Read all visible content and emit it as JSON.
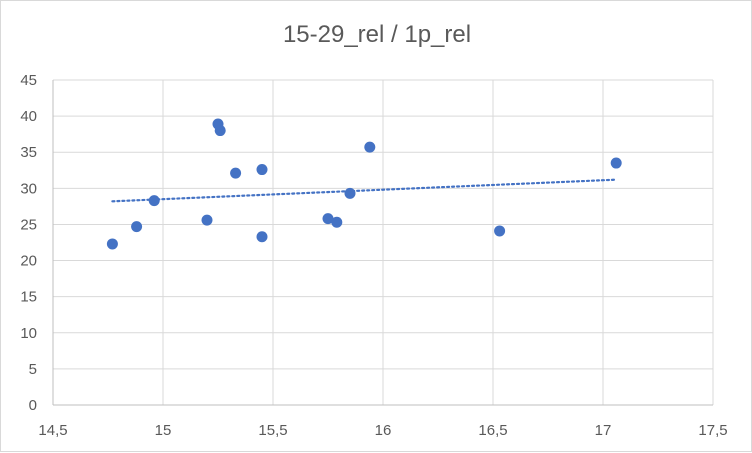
{
  "chart_data": {
    "type": "scatter",
    "title": "15-29_rel / 1p_rel",
    "xlabel": "",
    "ylabel": "",
    "xlim": [
      14.5,
      17.5
    ],
    "ylim": [
      0,
      45
    ],
    "x_ticks": [
      14.5,
      15,
      15.5,
      16,
      16.5,
      17,
      17.5
    ],
    "x_tick_labels": [
      "14,5",
      "15",
      "15,5",
      "16",
      "16,5",
      "17",
      "17,5"
    ],
    "y_ticks": [
      0,
      5,
      10,
      15,
      20,
      25,
      30,
      35,
      40,
      45
    ],
    "y_tick_labels": [
      "0",
      "5",
      "10",
      "15",
      "20",
      "25",
      "30",
      "35",
      "40",
      "45"
    ],
    "grid": true,
    "legend": "none",
    "series": [
      {
        "points": [
          {
            "x": 14.77,
            "y": 22.3
          },
          {
            "x": 14.88,
            "y": 24.7
          },
          {
            "x": 14.96,
            "y": 28.3
          },
          {
            "x": 15.2,
            "y": 25.6
          },
          {
            "x": 15.25,
            "y": 38.9
          },
          {
            "x": 15.26,
            "y": 38.0
          },
          {
            "x": 15.33,
            "y": 32.1
          },
          {
            "x": 15.45,
            "y": 32.6
          },
          {
            "x": 15.45,
            "y": 23.3
          },
          {
            "x": 15.75,
            "y": 25.8
          },
          {
            "x": 15.79,
            "y": 25.3
          },
          {
            "x": 15.85,
            "y": 29.3
          },
          {
            "x": 15.94,
            "y": 35.7
          },
          {
            "x": 16.53,
            "y": 24.1
          },
          {
            "x": 17.06,
            "y": 33.5
          }
        ],
        "color": "#4472c4"
      }
    ],
    "trendline": {
      "type": "linear",
      "style": "dotted",
      "color": "#4472c4",
      "x_range": [
        14.77,
        17.06
      ],
      "y_at_start": 28.2,
      "y_at_end": 31.2
    }
  }
}
